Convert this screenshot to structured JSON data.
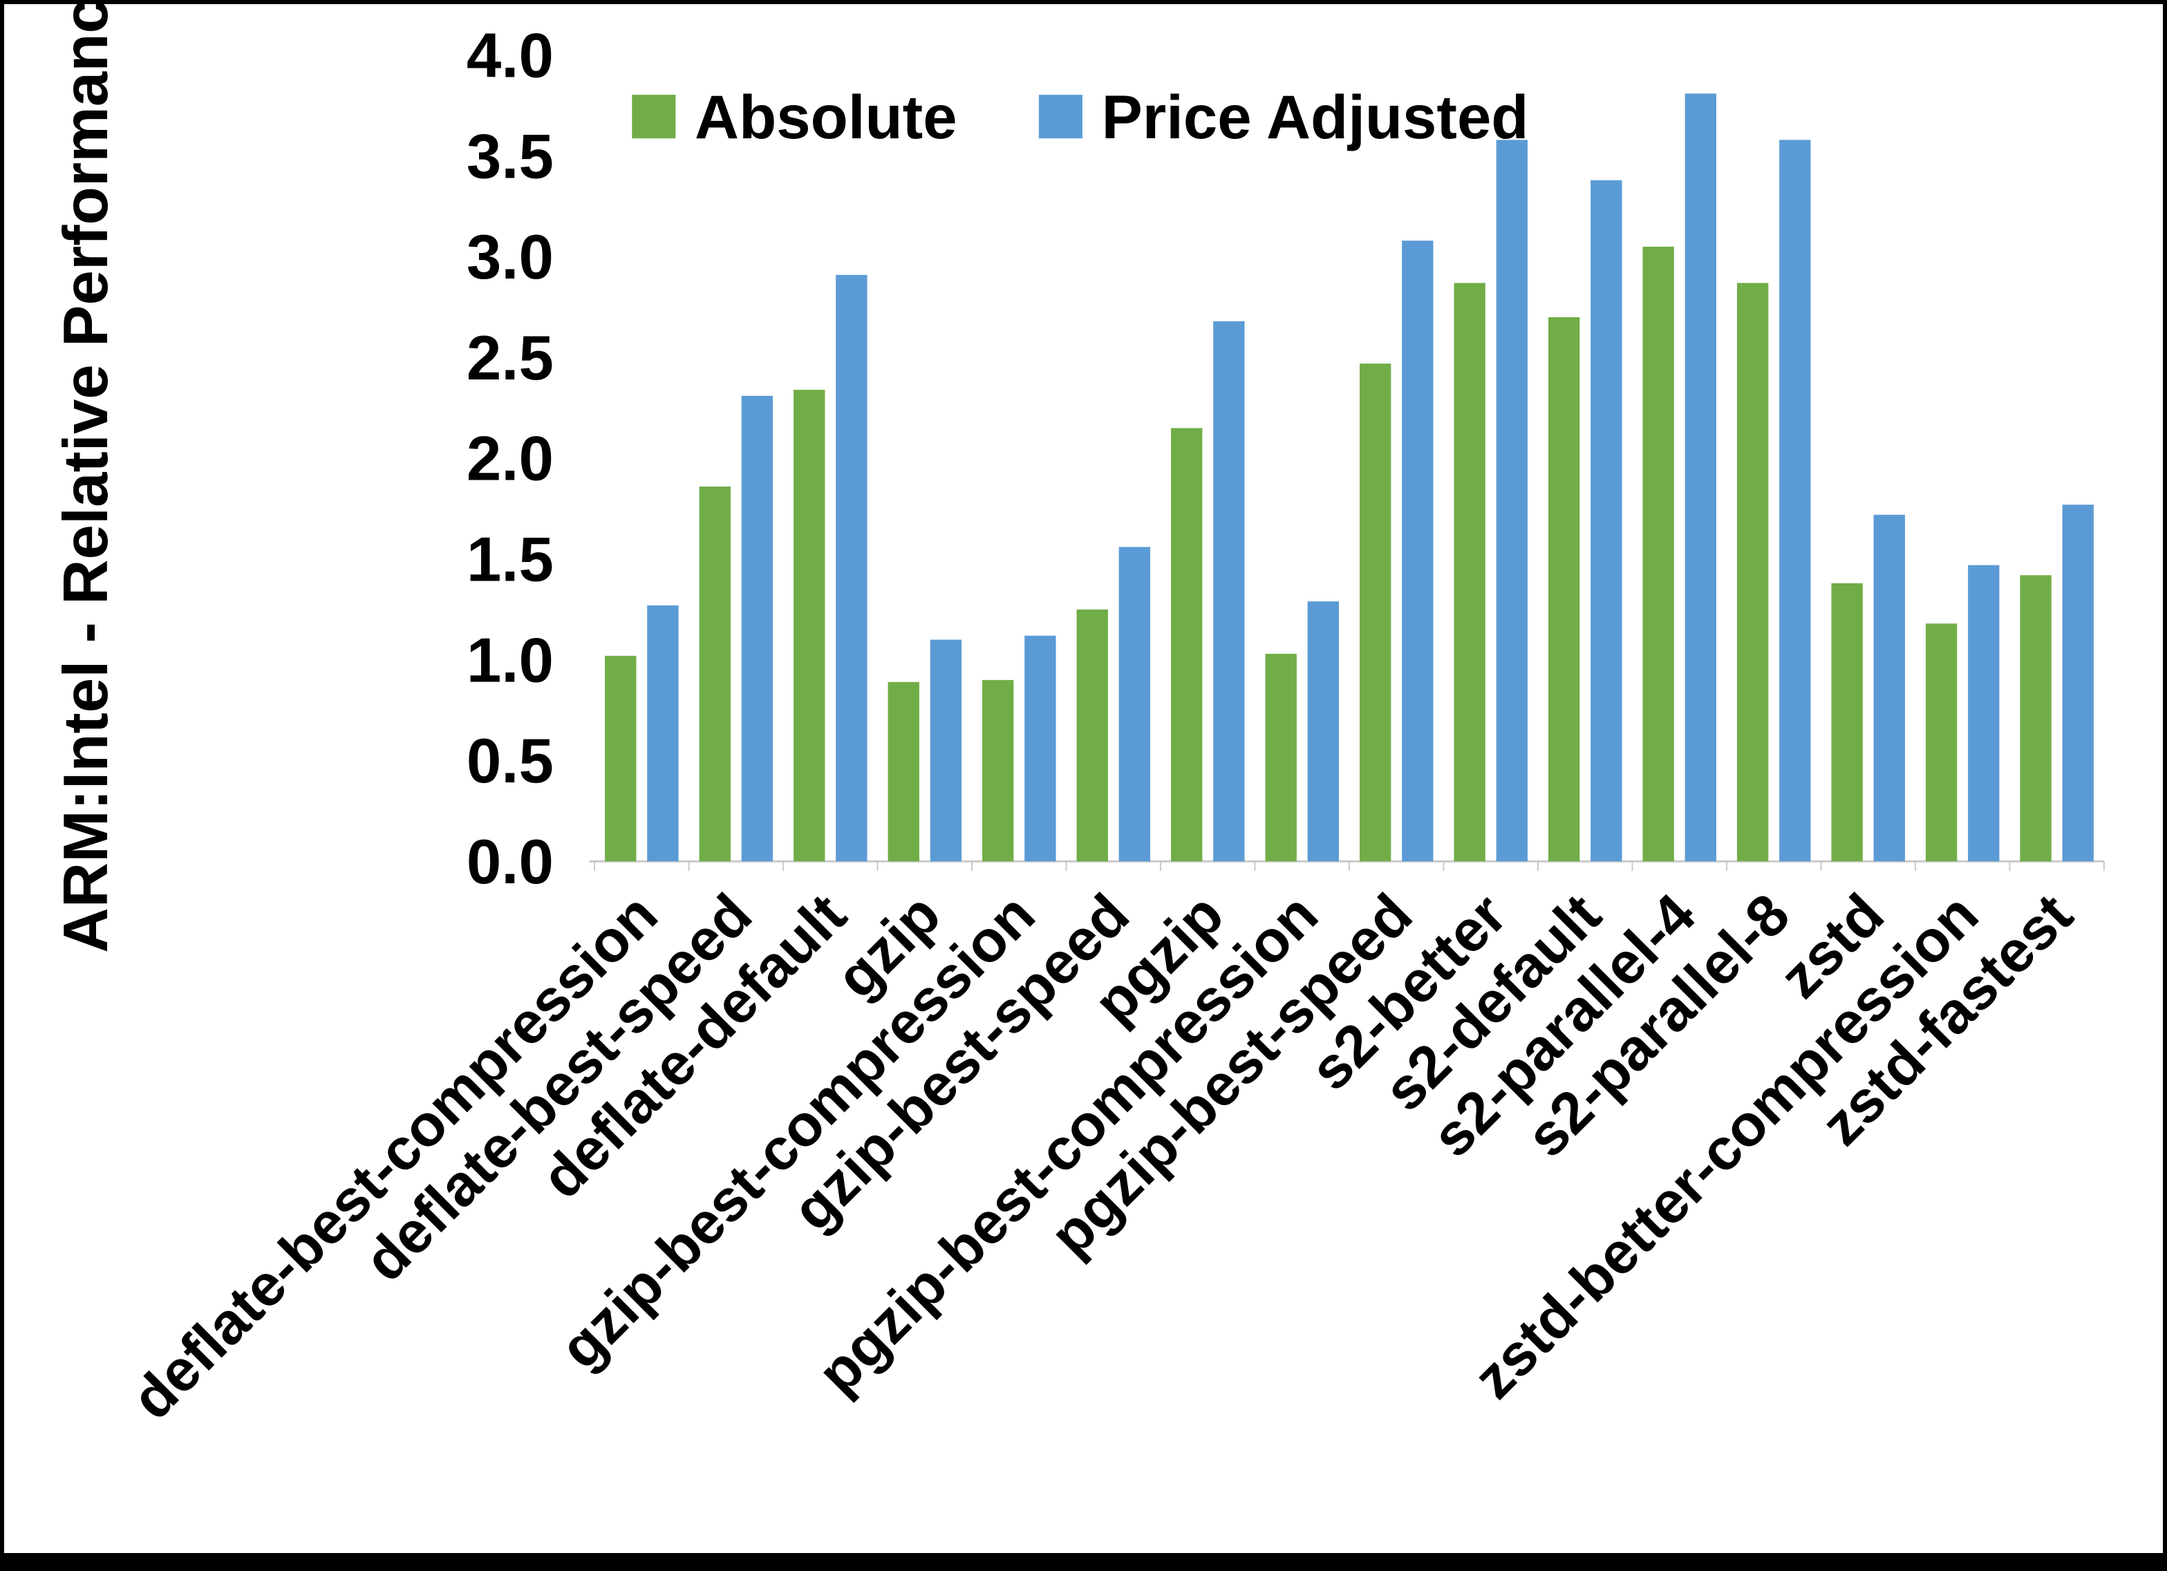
{
  "chart_data": {
    "type": "bar",
    "title": "",
    "xlabel": "",
    "ylabel": "ARM:Intel - Relative Performance",
    "ylim": [
      0,
      4.0
    ],
    "ytick_step": 0.5,
    "ytick_labels": [
      "0.0",
      "0.5",
      "1.0",
      "1.5",
      "2.0",
      "2.5",
      "3.0",
      "3.5",
      "4.0"
    ],
    "grid": false,
    "legend_position": "top",
    "categories": [
      "deflate-best-compression",
      "deflate-best-speed",
      "deflate-default",
      "gzip",
      "gzip-best-compression",
      "gzip-best-speed",
      "pgzip",
      "pgzip-best-compression",
      "pgzip-best-speed",
      "s2-better",
      "s2-default",
      "s2-parallel-4",
      "s2-parallel-8",
      "zstd",
      "zstd-better-compression",
      "zstd-fastest"
    ],
    "series": [
      {
        "name": "Absolute",
        "color": "#70AD47",
        "values": [
          1.02,
          1.86,
          2.34,
          0.89,
          0.9,
          1.25,
          2.15,
          1.03,
          2.47,
          2.87,
          2.7,
          3.05,
          2.87,
          1.38,
          1.18,
          1.42
        ]
      },
      {
        "name": "Price Adjusted",
        "color": "#5B9BD5",
        "values": [
          1.27,
          2.31,
          2.91,
          1.1,
          1.12,
          1.56,
          2.68,
          1.29,
          3.08,
          3.58,
          3.38,
          3.81,
          3.58,
          1.72,
          1.47,
          1.77
        ]
      }
    ]
  },
  "colors": {
    "axis_line": "#c9c9c9",
    "text": "#000000",
    "background": "#ffffff",
    "frame": "#000000"
  }
}
